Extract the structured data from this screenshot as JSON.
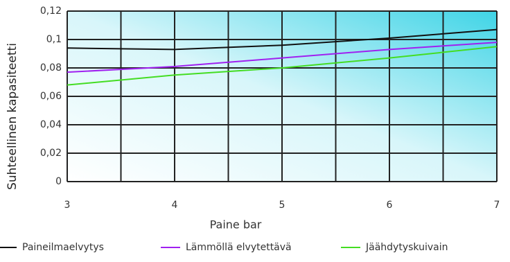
{
  "chart_data": {
    "type": "line",
    "x_label": "Paine bar",
    "y_label": "Suhteellinen kapasiteetti",
    "x": [
      3,
      4,
      5,
      6,
      7
    ],
    "series": [
      {
        "name": "Paineilmaelvytys",
        "color": "#111111",
        "values": [
          0.094,
          0.093,
          0.096,
          0.101,
          0.107
        ]
      },
      {
        "name": "Lämmöllä elvytettävä",
        "color": "#a020f0",
        "values": [
          0.077,
          0.081,
          0.087,
          0.093,
          0.098
        ]
      },
      {
        "name": "Jäähdytyskuivain",
        "color": "#44dd22",
        "values": [
          0.068,
          0.075,
          0.08,
          0.087,
          0.095
        ]
      }
    ],
    "xlim": [
      3,
      7
    ],
    "ylim": [
      0,
      0.12
    ],
    "xticks": [
      3,
      4,
      5,
      6,
      7
    ],
    "yticks": [
      0,
      {
        "value": 0.02,
        "label": "0,02"
      },
      {
        "value": 0.04,
        "label": "0,04"
      },
      {
        "value": 0.06,
        "label": "0,06"
      },
      {
        "value": 0.08,
        "label": "0,08"
      },
      {
        "value": 0.1,
        "label": "0,1"
      },
      {
        "value": 0.12,
        "label": "0,12"
      }
    ],
    "grid": true,
    "legend": "bottom"
  }
}
